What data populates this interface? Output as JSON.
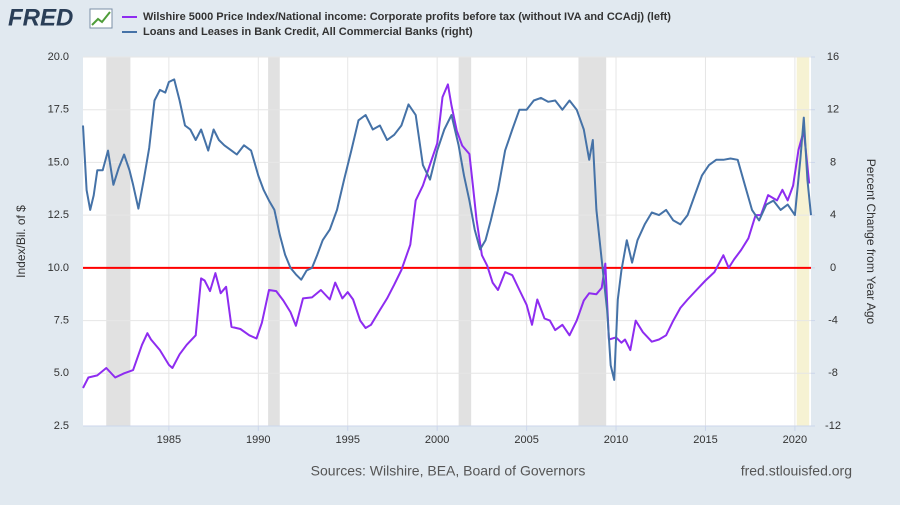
{
  "header": {
    "logo": "FRED"
  },
  "footer": {
    "sources": "Sources: Wilshire, BEA, Board of Governors",
    "site": "fred.stlouisfed.org"
  },
  "chart_data": {
    "type": "line",
    "y_label": "Index/Bil. of $",
    "y2_label": "Percent Change from Year Ago",
    "xlim": [
      1980.2,
      2020.9
    ],
    "xticks": [
      1985,
      1990,
      1995,
      2000,
      2005,
      2010,
      2015,
      2020
    ],
    "ylim": [
      2.5,
      20
    ],
    "yticks": [
      {
        "value": 2.5,
        "label": "2.5"
      },
      {
        "value": 5,
        "label": "5.0"
      },
      7.5,
      {
        "value": 10,
        "label": "10.0"
      },
      12.5,
      {
        "value": 15,
        "label": "15.0"
      },
      17.5,
      {
        "value": 20,
        "label": "20.0"
      }
    ],
    "y2lim": [
      -12,
      16
    ],
    "y2ticks": [
      -12,
      -8,
      -4,
      0,
      4,
      8,
      12,
      16
    ],
    "grid": true,
    "reference_line": {
      "axis": "y2",
      "value": 0,
      "color": "#ff0000"
    },
    "recessions": [
      {
        "start": 1981.5,
        "end": 1982.85,
        "color": "#e1e1e1"
      },
      {
        "start": 1990.55,
        "end": 1991.2,
        "color": "#e1e1e1"
      },
      {
        "start": 2001.2,
        "end": 2001.9,
        "color": "#e1e1e1"
      },
      {
        "start": 2007.9,
        "end": 2009.45,
        "color": "#e1e1e1"
      },
      {
        "start": 2020.1,
        "end": 2020.8,
        "color": "#f6f2d3"
      }
    ],
    "series": [
      {
        "name": "Wilshire 5000 Price Index/National income: Corporate profits before tax (without IVA and CCAdj) (left)",
        "color": "#8e2cf0",
        "axis": "y",
        "x": [
          1980.2,
          1980.5,
          1981,
          1981.5,
          1982,
          1982.5,
          1983,
          1983.5,
          1983.8,
          1984,
          1984.5,
          1985,
          1985.2,
          1985.6,
          1986,
          1986.5,
          1986.8,
          1987,
          1987.3,
          1987.6,
          1987.9,
          1988.2,
          1988.5,
          1989,
          1989.5,
          1989.9,
          1990.2,
          1990.6,
          1991,
          1991.4,
          1991.8,
          1992.1,
          1992.5,
          1993,
          1993.5,
          1994,
          1994.3,
          1994.7,
          1995,
          1995.3,
          1995.7,
          1996,
          1996.3,
          1996.8,
          1997.2,
          1997.6,
          1998,
          1998.5,
          1998.8,
          1999.2,
          1999.6,
          2000,
          2000.3,
          2000.6,
          2000.8,
          2001.1,
          2001.4,
          2001.8,
          2002,
          2002.2,
          2002.5,
          2002.8,
          2003.1,
          2003.4,
          2003.8,
          2004.2,
          2004.6,
          2005,
          2005.3,
          2005.6,
          2006,
          2006.3,
          2006.6,
          2007,
          2007.4,
          2007.8,
          2008.2,
          2008.5,
          2008.9,
          2009.2,
          2009.4,
          2009.6,
          2010,
          2010.3,
          2010.5,
          2010.8,
          2011.1,
          2011.5,
          2012,
          2012.4,
          2012.8,
          2013.2,
          2013.6,
          2014,
          2014.5,
          2015,
          2015.5,
          2016,
          2016.3,
          2016.6,
          2017,
          2017.4,
          2017.8,
          2018.1,
          2018.5,
          2019,
          2019.3,
          2019.6,
          2019.9,
          2020.2,
          2020.5,
          2020.8
        ],
        "values": [
          4.3,
          4.8,
          4.9,
          5.25,
          4.8,
          5.0,
          5.15,
          6.35,
          6.9,
          6.6,
          6.1,
          5.4,
          5.25,
          5.9,
          6.35,
          6.8,
          9.5,
          9.4,
          8.9,
          9.75,
          8.8,
          9.1,
          7.2,
          7.1,
          6.8,
          6.65,
          7.4,
          8.95,
          8.9,
          8.45,
          7.9,
          7.25,
          8.55,
          8.6,
          8.95,
          8.5,
          9.3,
          8.55,
          8.85,
          8.5,
          7.5,
          7.15,
          7.3,
          8.0,
          8.55,
          9.2,
          9.9,
          11.1,
          13.2,
          13.9,
          14.9,
          15.9,
          18.1,
          18.7,
          17.7,
          16.5,
          15.8,
          15.4,
          13.9,
          12.3,
          10.6,
          10.1,
          9.3,
          8.95,
          9.8,
          9.65,
          8.95,
          8.25,
          7.3,
          8.5,
          7.6,
          7.5,
          7.05,
          7.3,
          6.8,
          7.5,
          8.45,
          8.8,
          8.75,
          9.05,
          10.2,
          6.6,
          6.7,
          6.45,
          6.6,
          6.1,
          7.5,
          6.95,
          6.5,
          6.6,
          6.8,
          7.5,
          8.1,
          8.5,
          8.95,
          9.4,
          9.8,
          10.6,
          10.0,
          10.4,
          10.85,
          11.4,
          12.5,
          12.5,
          13.45,
          13.2,
          13.7,
          13.2,
          13.9,
          15.6,
          16.5,
          14.0
        ]
      },
      {
        "name": "Loans and Leases in Bank Credit, All Commercial Banks (right)",
        "color": "#4572a7",
        "axis": "y2",
        "x": [
          1980.2,
          1980.4,
          1980.6,
          1980.8,
          1981,
          1981.3,
          1981.6,
          1981.9,
          1982.2,
          1982.5,
          1982.8,
          1983,
          1983.3,
          1983.6,
          1983.9,
          1984.2,
          1984.5,
          1984.8,
          1985,
          1985.3,
          1985.6,
          1985.9,
          1986.2,
          1986.5,
          1986.8,
          1987.2,
          1987.5,
          1987.8,
          1988.1,
          1988.5,
          1988.8,
          1989.2,
          1989.6,
          1990,
          1990.3,
          1990.6,
          1990.9,
          1991.2,
          1991.5,
          1991.8,
          1992.1,
          1992.4,
          1992.7,
          1993,
          1993.3,
          1993.6,
          1994,
          1994.4,
          1994.8,
          1995.2,
          1995.6,
          1996,
          1996.4,
          1996.8,
          1997.2,
          1997.6,
          1998,
          1998.4,
          1998.8,
          1999.2,
          1999.6,
          2000,
          2000.4,
          2000.8,
          2001.2,
          2001.5,
          2001.8,
          2002.1,
          2002.4,
          2002.7,
          2003,
          2003.4,
          2003.8,
          2004.2,
          2004.6,
          2005,
          2005.4,
          2005.8,
          2006.2,
          2006.6,
          2007,
          2007.4,
          2007.8,
          2008.2,
          2008.5,
          2008.7,
          2008.9,
          2009.2,
          2009.5,
          2009.7,
          2009.9,
          2010.1,
          2010.3,
          2010.6,
          2010.9,
          2011.2,
          2011.6,
          2012,
          2012.4,
          2012.8,
          2013.2,
          2013.6,
          2014,
          2014.4,
          2014.8,
          2015.2,
          2015.6,
          2016,
          2016.4,
          2016.8,
          2017.2,
          2017.6,
          2018,
          2018.4,
          2018.8,
          2019.2,
          2019.6,
          2020,
          2020.3,
          2020.5,
          2020.7,
          2020.9
        ],
        "values": [
          10.8,
          5.9,
          4.4,
          5.5,
          7.4,
          7.4,
          8.9,
          6.3,
          7.6,
          8.6,
          7.4,
          6.3,
          4.5,
          6.7,
          9.1,
          12.7,
          13.5,
          13.3,
          14.1,
          14.3,
          12.7,
          10.8,
          10.5,
          9.7,
          10.5,
          8.9,
          10.5,
          9.7,
          9.3,
          8.9,
          8.6,
          9.3,
          8.9,
          7.0,
          5.9,
          5.1,
          4.4,
          2.5,
          1.0,
          0,
          -0.5,
          -0.9,
          -0.2,
          0,
          1.0,
          2.1,
          2.9,
          4.4,
          6.7,
          8.9,
          11.2,
          11.6,
          10.5,
          10.8,
          9.7,
          10.1,
          10.8,
          12.4,
          11.6,
          7.8,
          6.7,
          8.9,
          10.5,
          11.6,
          9.3,
          7.0,
          5.1,
          2.9,
          1.4,
          2.1,
          3.6,
          5.9,
          8.9,
          10.5,
          12.0,
          12.0,
          12.7,
          12.9,
          12.6,
          12.7,
          12.0,
          12.7,
          12.0,
          10.5,
          8.2,
          9.7,
          4.4,
          0.6,
          -3.2,
          -7.4,
          -8.5,
          -2.4,
          -0.2,
          2.1,
          0.4,
          2.1,
          3.3,
          4.2,
          4.0,
          4.4,
          3.6,
          3.3,
          4.0,
          5.5,
          7.0,
          7.8,
          8.2,
          8.2,
          8.3,
          8.2,
          6.3,
          4.4,
          3.6,
          4.8,
          5.1,
          4.4,
          4.8,
          4.0,
          8.2,
          11.4,
          6.7,
          4.0
        ]
      }
    ]
  }
}
